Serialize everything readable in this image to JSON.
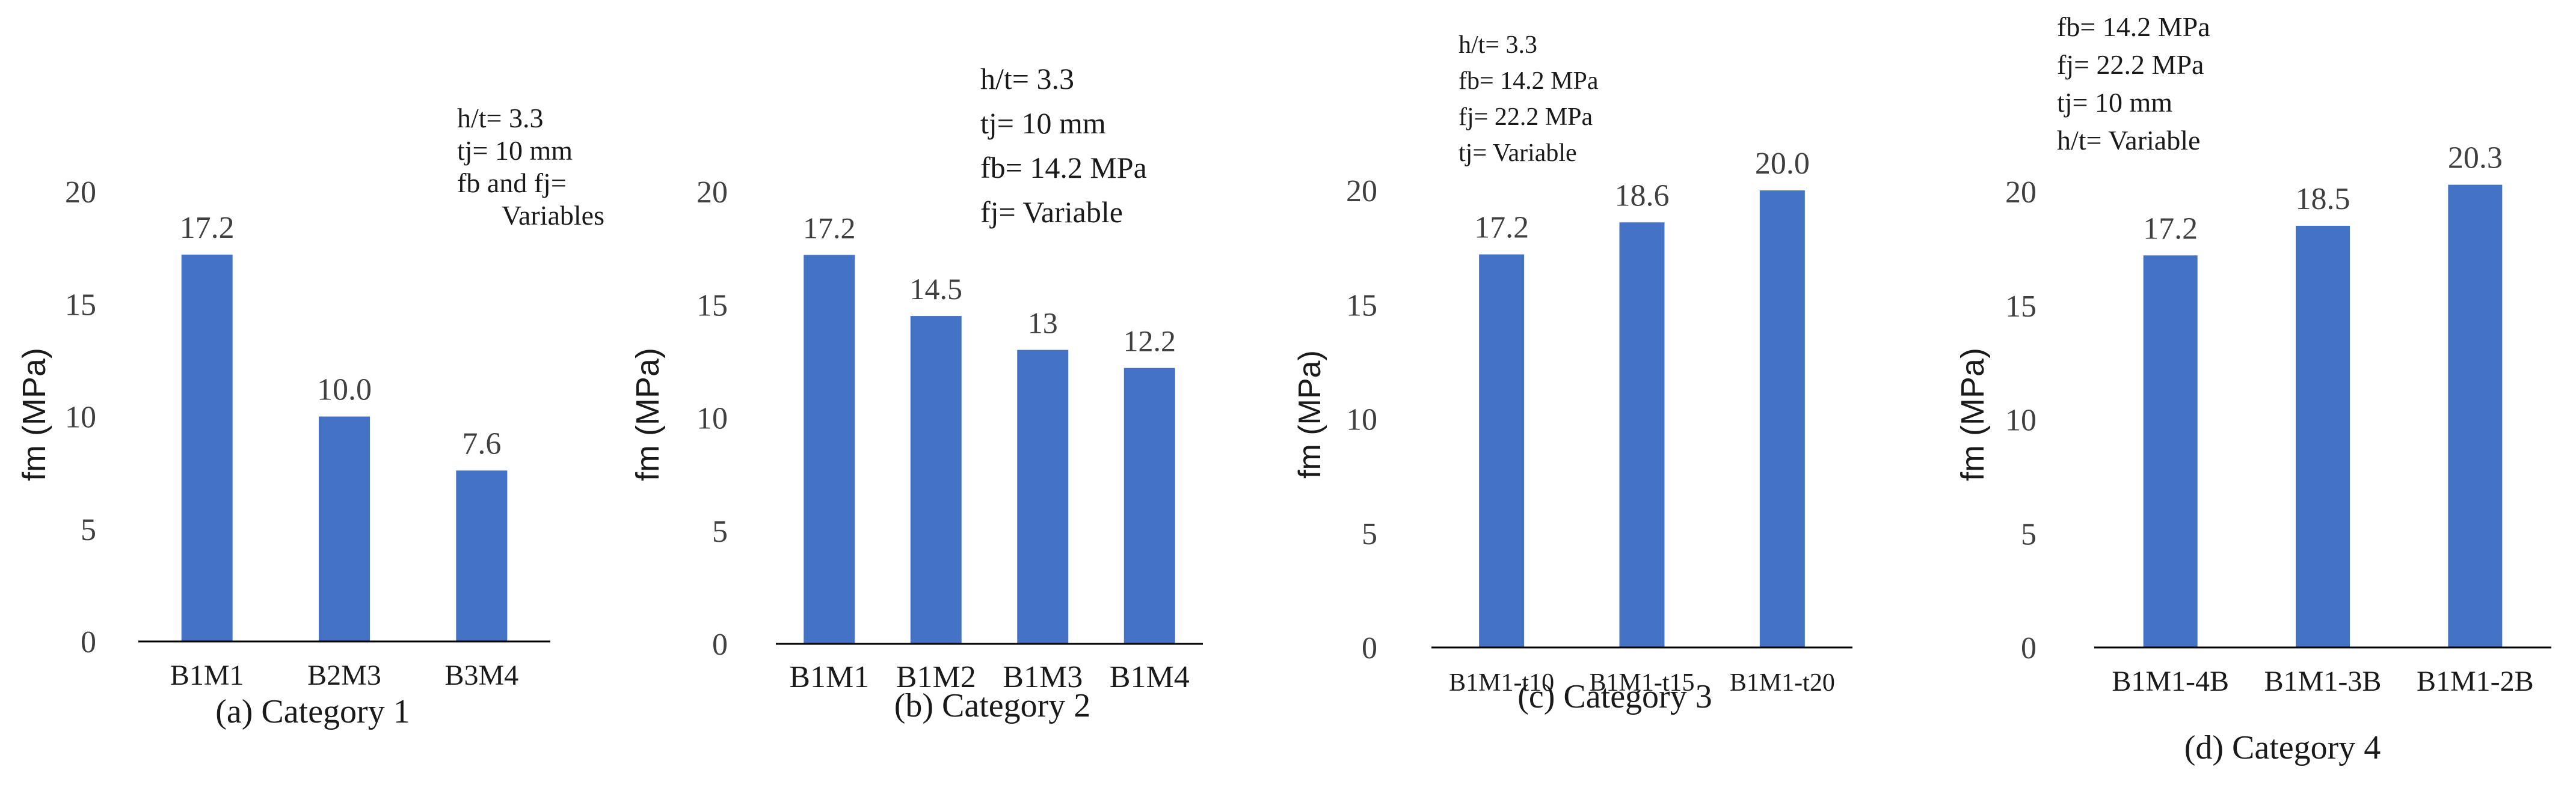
{
  "chart_data": [
    {
      "type": "bar",
      "caption": "(a) Category 1",
      "ylabel": "fm (MPa)",
      "ylim": [
        0,
        20
      ],
      "yticks": [
        "0",
        "5",
        "10",
        "15",
        "20"
      ],
      "categories": [
        "B1M1",
        "B2M3",
        "B3M4"
      ],
      "values": [
        17.2,
        10.0,
        7.6
      ],
      "value_labels": [
        "17.2",
        "10.0",
        "7.6"
      ],
      "annotations": [
        "h/t= 3.3",
        "tj= 10 mm",
        "fb and fj=",
        "Variables"
      ]
    },
    {
      "type": "bar",
      "caption": "(b) Category 2",
      "ylabel": "fm (MPa)",
      "ylim": [
        0,
        20
      ],
      "yticks": [
        "0",
        "5",
        "10",
        "15",
        "20"
      ],
      "categories": [
        "B1M1",
        "B1M2",
        "B1M3",
        "B1M4"
      ],
      "values": [
        17.2,
        14.5,
        13,
        12.2
      ],
      "value_labels": [
        "17.2",
        "14.5",
        "13",
        "12.2"
      ],
      "annotations": [
        "h/t= 3.3",
        "tj= 10 mm",
        "fb= 14.2 MPa",
        "fj= Variable"
      ]
    },
    {
      "type": "bar",
      "caption": "(c) Category 3",
      "ylabel": "fm  (MPa)",
      "ylim": [
        0,
        20
      ],
      "yticks": [
        "0",
        "5",
        "10",
        "15",
        "20"
      ],
      "categories": [
        "B1M1-t10",
        "B1M1-t15",
        "B1M1-t20"
      ],
      "values": [
        17.2,
        18.6,
        20.0
      ],
      "value_labels": [
        "17.2",
        "18.6",
        "20.0"
      ],
      "annotations": [
        "h/t= 3.3",
        "fb= 14.2 MPa",
        "fj= 22.2 MPa",
        "tj= Variable"
      ]
    },
    {
      "type": "bar",
      "caption": "(d) Category 4",
      "ylabel": "fm (MPa)",
      "ylim": [
        0,
        20
      ],
      "yticks": [
        "0",
        "5",
        "10",
        "15",
        "20"
      ],
      "categories": [
        "B1M1-4B",
        "B1M1-3B",
        "B1M1-2B"
      ],
      "values": [
        17.2,
        18.5,
        20.3
      ],
      "value_labels": [
        "17.2",
        "18.5",
        "20.3"
      ],
      "annotations": [
        "fb= 14.2 MPa",
        "fj= 22.2 MPa",
        "tj= 10 mm",
        "h/t=  Variable"
      ]
    }
  ],
  "colors": {
    "bar": "#4472C4",
    "axis": "#000000",
    "text": "#404040"
  }
}
